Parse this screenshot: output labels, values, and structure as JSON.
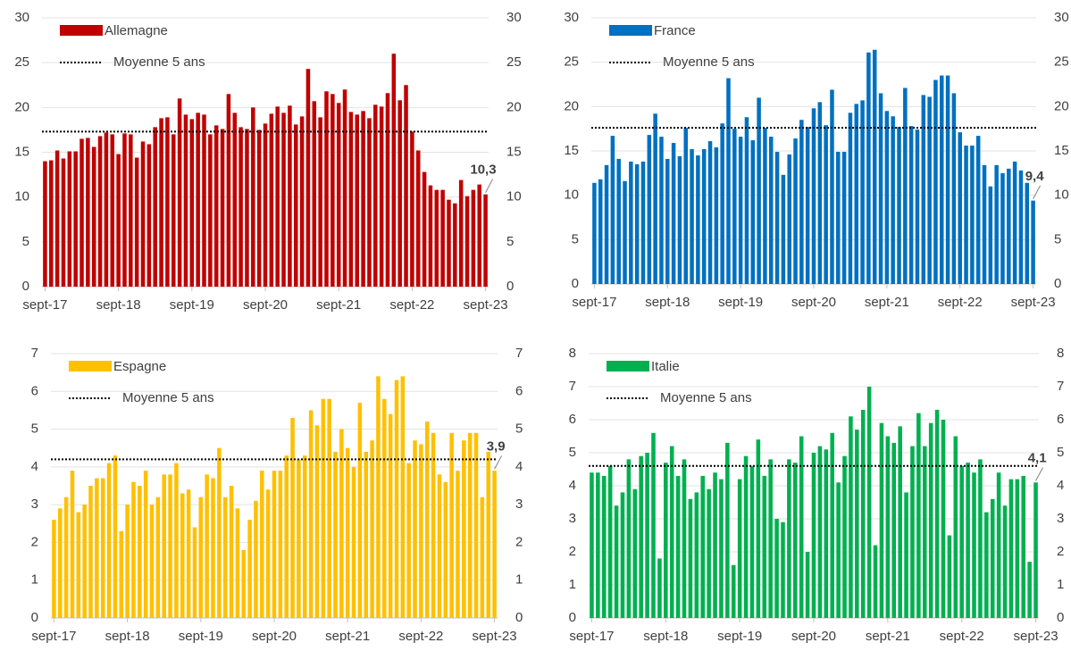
{
  "chart_data": [
    {
      "type": "bar",
      "ylim": [
        0,
        30
      ],
      "yticks": [
        0,
        5,
        10,
        15,
        20,
        25,
        30
      ],
      "y2lim": [
        0,
        30
      ],
      "y2ticks": [
        0,
        5,
        10,
        15,
        20,
        25,
        30
      ],
      "grid": true,
      "categories": [
        "sept-17",
        null,
        null,
        null,
        null,
        null,
        null,
        null,
        null,
        null,
        null,
        null,
        "sept-18",
        null,
        null,
        null,
        null,
        null,
        null,
        null,
        null,
        null,
        null,
        null,
        "sept-19",
        null,
        null,
        null,
        null,
        null,
        null,
        null,
        null,
        null,
        null,
        null,
        "sept-20",
        null,
        null,
        null,
        null,
        null,
        null,
        null,
        null,
        null,
        null,
        null,
        "sept-21",
        null,
        null,
        null,
        null,
        null,
        null,
        null,
        null,
        null,
        null,
        null,
        "sept-22",
        null,
        null,
        null,
        null,
        null,
        null,
        null,
        null,
        null,
        null,
        null,
        "sept-23"
      ],
      "series": [
        {
          "name": "Allemagne",
          "color": "#c00000",
          "values": [
            14.0,
            14.1,
            15.2,
            14.3,
            15.1,
            15.1,
            16.5,
            16.6,
            15.6,
            16.8,
            17.2,
            17.0,
            14.8,
            17.1,
            17.0,
            14.4,
            16.2,
            15.9,
            17.8,
            18.8,
            18.9,
            17.0,
            21.0,
            19.2,
            18.7,
            19.4,
            19.2,
            17.0,
            18.0,
            17.6,
            21.5,
            19.4,
            17.8,
            17.6,
            20.0,
            17.5,
            18.2,
            19.3,
            20.1,
            19.4,
            20.2,
            18.1,
            19.0,
            24.3,
            20.7,
            18.9,
            21.8,
            21.5,
            20.5,
            22.0,
            19.5,
            19.2,
            19.6,
            18.8,
            20.3,
            20.1,
            21.6,
            26.0,
            20.8,
            22.5,
            17.3,
            15.2,
            12.8,
            11.3,
            10.8,
            10.8,
            9.7,
            9.3,
            11.9,
            10.1,
            10.8,
            11.4,
            10.3
          ],
          "value_labels": [
            null,
            null,
            null,
            null,
            null,
            null,
            null,
            null,
            null,
            null,
            null,
            null,
            null,
            null,
            null,
            null,
            null,
            null,
            null,
            null,
            null,
            null,
            null,
            null,
            null,
            null,
            null,
            null,
            null,
            null,
            null,
            null,
            null,
            null,
            null,
            null,
            null,
            null,
            null,
            null,
            null,
            null,
            null,
            null,
            null,
            null,
            null,
            null,
            null,
            null,
            null,
            null,
            null,
            null,
            null,
            null,
            null,
            null,
            null,
            null,
            null,
            null,
            null,
            null,
            null,
            null,
            null,
            null,
            null,
            null,
            null,
            null,
            "10,3"
          ]
        }
      ],
      "average": {
        "name": "Moyenne 5 ans",
        "value": 17.3,
        "color": "#000000"
      }
    },
    {
      "type": "bar",
      "ylim": [
        0,
        30
      ],
      "yticks": [
        0,
        5,
        10,
        15,
        20,
        25,
        30
      ],
      "y2lim": [
        0,
        30
      ],
      "y2ticks": [
        0,
        5,
        10,
        15,
        20,
        25,
        30
      ],
      "grid": true,
      "categories": [
        "sept-17",
        null,
        null,
        null,
        null,
        null,
        null,
        null,
        null,
        null,
        null,
        null,
        "sept-18",
        null,
        null,
        null,
        null,
        null,
        null,
        null,
        null,
        null,
        null,
        null,
        "sept-19",
        null,
        null,
        null,
        null,
        null,
        null,
        null,
        null,
        null,
        null,
        null,
        "sept-20",
        null,
        null,
        null,
        null,
        null,
        null,
        null,
        null,
        null,
        null,
        null,
        "sept-21",
        null,
        null,
        null,
        null,
        null,
        null,
        null,
        null,
        null,
        null,
        null,
        "sept-22",
        null,
        null,
        null,
        null,
        null,
        null,
        null,
        null,
        null,
        null,
        null,
        "sept-23"
      ],
      "series": [
        {
          "name": "France",
          "color": "#0070c0",
          "values": [
            11.4,
            11.8,
            13.4,
            16.7,
            14.1,
            11.6,
            13.8,
            13.5,
            13.8,
            16.8,
            19.2,
            16.6,
            14.1,
            15.9,
            14.4,
            17.6,
            15.2,
            14.5,
            15.2,
            16.1,
            15.4,
            18.1,
            23.2,
            17.5,
            16.6,
            18.8,
            16.2,
            21.0,
            17.6,
            16.6,
            14.9,
            12.3,
            14.6,
            16.4,
            18.5,
            17.7,
            19.8,
            20.5,
            17.9,
            21.9,
            14.9,
            14.9,
            19.3,
            20.3,
            20.7,
            26.1,
            26.4,
            21.5,
            19.5,
            18.9,
            17.7,
            22.1,
            17.8,
            17.4,
            21.3,
            21.1,
            23.0,
            23.5,
            23.5,
            21.5,
            17.1,
            15.6,
            15.6,
            16.7,
            13.4,
            11.0,
            13.4,
            12.5,
            13.0,
            13.8,
            12.8,
            11.4,
            9.4
          ],
          "value_labels": [
            null,
            null,
            null,
            null,
            null,
            null,
            null,
            null,
            null,
            null,
            null,
            null,
            null,
            null,
            null,
            null,
            null,
            null,
            null,
            null,
            null,
            null,
            null,
            null,
            null,
            null,
            null,
            null,
            null,
            null,
            null,
            null,
            null,
            null,
            null,
            null,
            null,
            null,
            null,
            null,
            null,
            null,
            null,
            null,
            null,
            null,
            null,
            null,
            null,
            null,
            null,
            null,
            null,
            null,
            null,
            null,
            null,
            null,
            null,
            null,
            null,
            null,
            null,
            null,
            null,
            null,
            null,
            null,
            null,
            null,
            null,
            null,
            "9,4"
          ]
        }
      ],
      "average": {
        "name": "Moyenne 5 ans",
        "value": 17.6,
        "color": "#000000"
      }
    },
    {
      "type": "bar",
      "ylim": [
        0,
        7
      ],
      "yticks": [
        0,
        1,
        2,
        3,
        4,
        5,
        6,
        7
      ],
      "y2lim": [
        0,
        7
      ],
      "y2ticks": [
        0,
        1,
        2,
        3,
        4,
        5,
        6,
        7
      ],
      "grid": true,
      "categories": [
        "sept-17",
        null,
        null,
        null,
        null,
        null,
        null,
        null,
        null,
        null,
        null,
        null,
        "sept-18",
        null,
        null,
        null,
        null,
        null,
        null,
        null,
        null,
        null,
        null,
        null,
        "sept-19",
        null,
        null,
        null,
        null,
        null,
        null,
        null,
        null,
        null,
        null,
        null,
        "sept-20",
        null,
        null,
        null,
        null,
        null,
        null,
        null,
        null,
        null,
        null,
        null,
        "sept-21",
        null,
        null,
        null,
        null,
        null,
        null,
        null,
        null,
        null,
        null,
        null,
        "sept-22",
        null,
        null,
        null,
        null,
        null,
        null,
        null,
        null,
        null,
        null,
        null,
        "sept-23"
      ],
      "series": [
        {
          "name": "Espagne",
          "color": "#ffc000",
          "values": [
            2.6,
            2.9,
            3.2,
            3.9,
            2.8,
            3.0,
            3.5,
            3.7,
            3.7,
            4.1,
            4.3,
            2.3,
            3.0,
            3.6,
            3.5,
            3.9,
            3.0,
            3.2,
            3.8,
            3.8,
            4.1,
            3.3,
            3.4,
            2.4,
            3.2,
            3.8,
            3.7,
            4.5,
            3.2,
            3.5,
            2.9,
            1.8,
            2.6,
            3.1,
            3.9,
            3.4,
            3.9,
            3.9,
            4.3,
            5.3,
            4.2,
            4.3,
            5.5,
            5.1,
            5.8,
            5.8,
            4.4,
            5.0,
            4.5,
            4.0,
            5.7,
            4.4,
            4.7,
            6.4,
            5.8,
            5.4,
            6.3,
            6.4,
            4.1,
            4.7,
            4.6,
            5.2,
            4.9,
            3.8,
            3.6,
            4.9,
            3.9,
            4.7,
            4.9,
            4.9,
            3.2,
            4.4,
            3.9
          ],
          "value_labels": [
            null,
            null,
            null,
            null,
            null,
            null,
            null,
            null,
            null,
            null,
            null,
            null,
            null,
            null,
            null,
            null,
            null,
            null,
            null,
            null,
            null,
            null,
            null,
            null,
            null,
            null,
            null,
            null,
            null,
            null,
            null,
            null,
            null,
            null,
            null,
            null,
            null,
            null,
            null,
            null,
            null,
            null,
            null,
            null,
            null,
            null,
            null,
            null,
            null,
            null,
            null,
            null,
            null,
            null,
            null,
            null,
            null,
            null,
            null,
            null,
            null,
            null,
            null,
            null,
            null,
            null,
            null,
            null,
            null,
            null,
            null,
            null,
            "3,9"
          ]
        }
      ],
      "average": {
        "name": "Moyenne 5 ans",
        "value": 4.2,
        "color": "#000000"
      }
    },
    {
      "type": "bar",
      "ylim": [
        0,
        8
      ],
      "yticks": [
        0,
        1,
        2,
        3,
        4,
        5,
        6,
        7,
        8
      ],
      "y2lim": [
        0,
        8
      ],
      "y2ticks": [
        0,
        1,
        2,
        3,
        4,
        5,
        6,
        7,
        8
      ],
      "grid": true,
      "categories": [
        "sept-17",
        null,
        null,
        null,
        null,
        null,
        null,
        null,
        null,
        null,
        null,
        null,
        "sept-18",
        null,
        null,
        null,
        null,
        null,
        null,
        null,
        null,
        null,
        null,
        null,
        "sept-19",
        null,
        null,
        null,
        null,
        null,
        null,
        null,
        null,
        null,
        null,
        null,
        "sept-20",
        null,
        null,
        null,
        null,
        null,
        null,
        null,
        null,
        null,
        null,
        null,
        "sept-21",
        null,
        null,
        null,
        null,
        null,
        null,
        null,
        null,
        null,
        null,
        null,
        "sept-22",
        null,
        null,
        null,
        null,
        null,
        null,
        null,
        null,
        null,
        null,
        null,
        "sept-23"
      ],
      "series": [
        {
          "name": "Italie",
          "color": "#00b050",
          "values": [
            4.4,
            4.4,
            4.3,
            4.6,
            3.4,
            3.8,
            4.8,
            3.9,
            4.9,
            5.0,
            5.6,
            1.8,
            4.7,
            5.2,
            4.3,
            4.8,
            3.6,
            3.8,
            4.3,
            3.9,
            4.4,
            4.2,
            5.3,
            1.6,
            4.2,
            4.9,
            4.6,
            5.4,
            4.3,
            4.8,
            3.0,
            2.9,
            4.8,
            4.7,
            5.5,
            2.0,
            5.0,
            5.2,
            5.1,
            5.6,
            4.1,
            4.9,
            6.1,
            5.7,
            6.3,
            7.0,
            2.2,
            5.9,
            5.5,
            5.3,
            5.8,
            3.8,
            5.2,
            6.2,
            5.2,
            5.9,
            6.3,
            6.0,
            2.5,
            5.5,
            4.6,
            4.7,
            4.4,
            4.8,
            3.2,
            3.6,
            4.4,
            3.4,
            4.2,
            4.2,
            4.3,
            1.7,
            4.1
          ],
          "value_labels": [
            null,
            null,
            null,
            null,
            null,
            null,
            null,
            null,
            null,
            null,
            null,
            null,
            null,
            null,
            null,
            null,
            null,
            null,
            null,
            null,
            null,
            null,
            null,
            null,
            null,
            null,
            null,
            null,
            null,
            null,
            null,
            null,
            null,
            null,
            null,
            null,
            null,
            null,
            null,
            null,
            null,
            null,
            null,
            null,
            null,
            null,
            null,
            null,
            null,
            null,
            null,
            null,
            null,
            null,
            null,
            null,
            null,
            null,
            null,
            null,
            null,
            null,
            null,
            null,
            null,
            null,
            null,
            null,
            null,
            null,
            null,
            null,
            "4,1"
          ]
        }
      ],
      "average": {
        "name": "Moyenne 5 ans",
        "value": 4.6,
        "color": "#000000"
      }
    }
  ]
}
